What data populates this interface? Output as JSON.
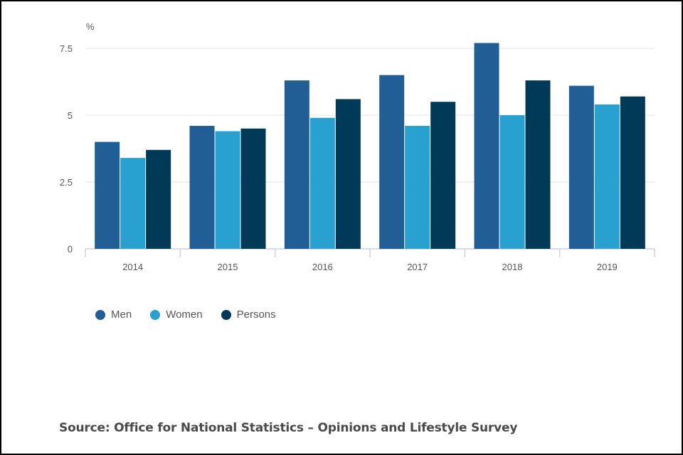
{
  "chart_data": {
    "type": "bar",
    "unit_label": "%",
    "categories": [
      "2014",
      "2015",
      "2016",
      "2017",
      "2018",
      "2019"
    ],
    "series": [
      {
        "name": "Men",
        "color": "#215e96",
        "values": [
          4.0,
          4.6,
          6.3,
          6.5,
          7.7,
          6.1
        ]
      },
      {
        "name": "Women",
        "color": "#28a0d0",
        "values": [
          3.4,
          4.4,
          4.9,
          4.6,
          5.0,
          5.4
        ]
      },
      {
        "name": "Persons",
        "color": "#003a57",
        "values": [
          3.7,
          4.5,
          5.6,
          5.5,
          6.3,
          5.7
        ]
      }
    ],
    "yticks": [
      "0",
      "2.5",
      "5",
      "7.5"
    ],
    "ylim": [
      0,
      7.5
    ],
    "grid": true,
    "legend_position": "bottom-left"
  },
  "source": "Source: Office for National Statistics – Opinions and Lifestyle Survey"
}
